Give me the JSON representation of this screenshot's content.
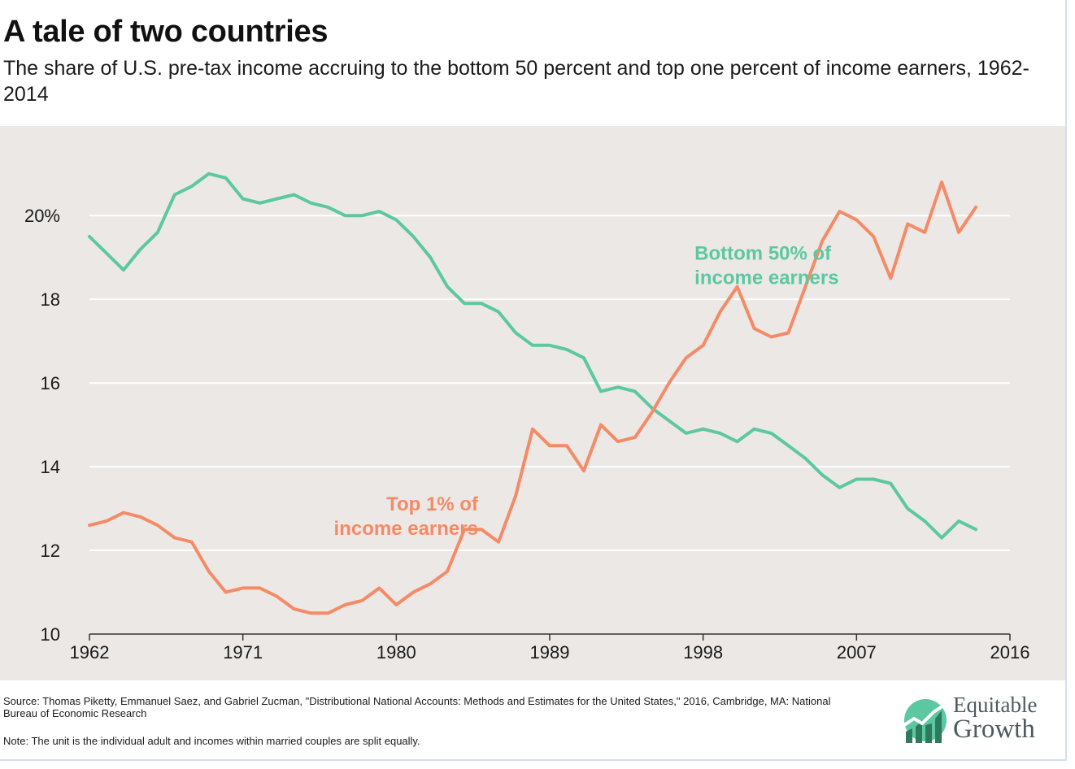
{
  "header": {
    "title": "A tale of two countries",
    "subtitle": "The share of U.S. pre-tax income accruing to the bottom 50 percent and top one percent of income earners, 1962-2014"
  },
  "footer": {
    "source": "Source: Thomas Piketty, Emmanuel Saez, and Gabriel Zucman, \"Distributional National Accounts: Methods and Estimates for the United States,\" 2016, Cambridge, MA: National Bureau of Economic Research",
    "note": "Note: The unit is the individual adult and incomes within married couples are split equally.",
    "logo_line1": "Equitable",
    "logo_line2": "Growth"
  },
  "colors": {
    "bottom50": "#5cc8a1",
    "top1": "#f58b66",
    "plot_background": "#ebe8e6",
    "gridline": "#ffffff"
  },
  "chart_data": {
    "type": "line",
    "title": "A tale of two countries",
    "xlim": [
      1962,
      2016
    ],
    "ylim": [
      10,
      21.5
    ],
    "x_ticks": [
      1962,
      1971,
      1980,
      1989,
      1998,
      2007,
      2016
    ],
    "y_ticks": [
      10,
      12,
      14,
      16,
      18,
      20
    ],
    "y_tick_labels": [
      "10",
      "12",
      "14",
      "16",
      "18",
      "20%"
    ],
    "grid": "horizontal",
    "x": [
      1962,
      1963,
      1964,
      1965,
      1966,
      1967,
      1968,
      1969,
      1970,
      1971,
      1972,
      1973,
      1974,
      1975,
      1976,
      1977,
      1978,
      1979,
      1980,
      1981,
      1982,
      1983,
      1984,
      1985,
      1986,
      1987,
      1988,
      1989,
      1990,
      1991,
      1992,
      1993,
      1994,
      1995,
      1996,
      1997,
      1998,
      1999,
      2000,
      2001,
      2002,
      2003,
      2004,
      2005,
      2006,
      2007,
      2008,
      2009,
      2010,
      2011,
      2012,
      2013,
      2014
    ],
    "series": [
      {
        "name": "Bottom 50% of income earners",
        "label_lines": [
          "Bottom 50% of",
          "income earners"
        ],
        "label_anchor": [
          1997.5,
          18.95
        ],
        "label_align": "start",
        "color": "#5cc8a1",
        "values": [
          19.5,
          19.1,
          18.7,
          19.2,
          19.6,
          20.5,
          20.7,
          21.0,
          20.9,
          20.4,
          20.3,
          20.4,
          20.5,
          20.3,
          20.2,
          20.0,
          20.0,
          20.1,
          19.9,
          19.5,
          19.0,
          18.3,
          17.9,
          17.9,
          17.7,
          17.2,
          16.9,
          16.9,
          16.8,
          16.6,
          15.8,
          15.9,
          15.8,
          15.4,
          15.1,
          14.8,
          14.9,
          14.8,
          14.6,
          14.9,
          14.8,
          14.5,
          14.2,
          13.8,
          13.5,
          13.7,
          13.7,
          13.6,
          13.0,
          12.7,
          12.3,
          12.7,
          12.5
        ]
      },
      {
        "name": "Top 1% of income earners",
        "label_lines": [
          "Top 1% of",
          "income earners"
        ],
        "label_anchor": [
          1984.8,
          12.95
        ],
        "label_align": "end",
        "color": "#f58b66",
        "values": [
          12.6,
          12.7,
          12.9,
          12.8,
          12.6,
          12.3,
          12.2,
          11.5,
          11.0,
          11.1,
          11.1,
          10.9,
          10.6,
          10.5,
          10.5,
          10.7,
          10.8,
          11.1,
          10.7,
          11.0,
          11.2,
          11.5,
          12.5,
          12.5,
          12.2,
          13.3,
          14.9,
          14.5,
          14.5,
          13.9,
          15.0,
          14.6,
          14.7,
          15.3,
          16.0,
          16.6,
          16.9,
          17.7,
          18.3,
          17.3,
          17.1,
          17.2,
          18.3,
          19.4,
          20.1,
          19.9,
          19.5,
          18.5,
          19.8,
          19.6,
          20.8,
          19.6,
          20.2
        ]
      }
    ]
  }
}
